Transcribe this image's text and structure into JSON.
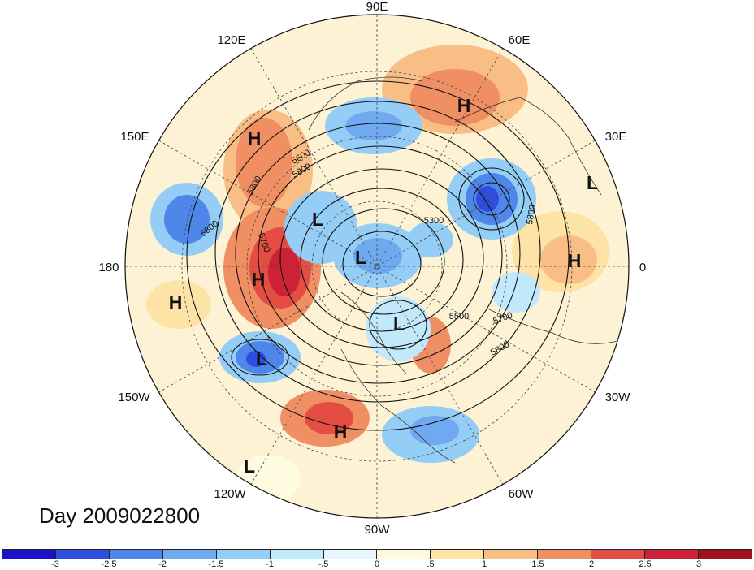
{
  "title": "Day 2009022800",
  "longitude_labels": [
    "90E",
    "60E",
    "30E",
    "0",
    "30W",
    "60W",
    "90W",
    "120W",
    "150W",
    "180",
    "150E",
    "120E"
  ],
  "pressure_centers": [
    {
      "label": "H"
    },
    {
      "label": "H"
    },
    {
      "label": "L"
    },
    {
      "label": "H"
    },
    {
      "label": "L"
    },
    {
      "label": "L"
    },
    {
      "label": "H"
    },
    {
      "label": "H"
    },
    {
      "label": "L"
    },
    {
      "label": "L"
    },
    {
      "label": "H"
    },
    {
      "label": "L"
    }
  ],
  "contour_labels": [
    "5800",
    "5600",
    "5800",
    "5700",
    "5300",
    "5800",
    "5500",
    "5700",
    "5800",
    "5800"
  ],
  "colorbar": {
    "ticks": [
      "-3",
      "-2.5",
      "-2",
      "-1.5",
      "-1",
      "-.5",
      "0",
      ".5",
      "1",
      "1.5",
      "2",
      "2.5",
      "3"
    ],
    "colors": [
      "#1a12c8",
      "#2f4ee0",
      "#4f86ea",
      "#6fa9f0",
      "#94cdf6",
      "#c1e8fb",
      "#e7f7fd",
      "#fffbe0",
      "#fde3a6",
      "#f9be86",
      "#f08e64",
      "#e44d44",
      "#cc2236",
      "#a3101d"
    ]
  }
}
